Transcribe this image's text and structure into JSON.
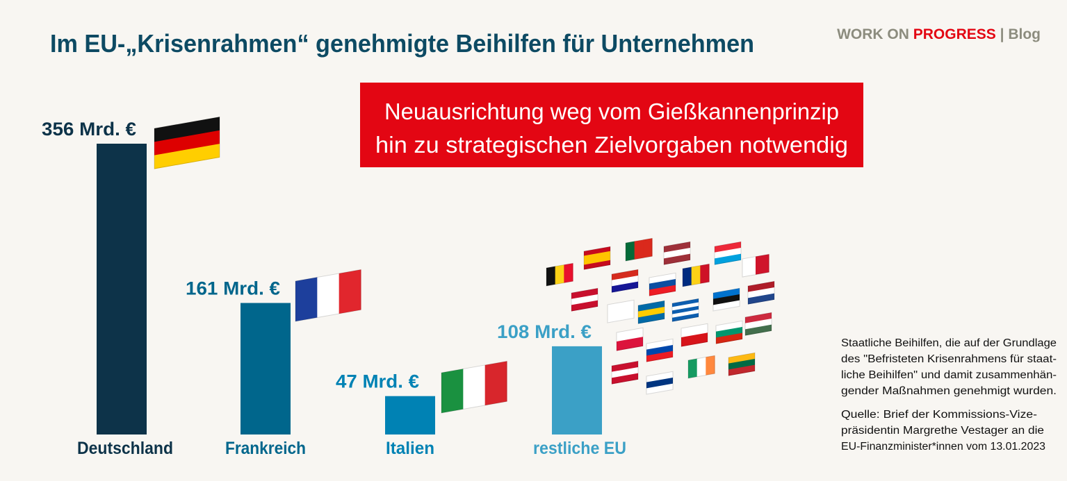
{
  "brand": {
    "prefix": "WORK ON",
    "highlight": "PROGRESS",
    "separator": "|",
    "name": "Blog"
  },
  "callout": {
    "lines": [
      "Neuausrichtung weg vom Gießkannenprinzip",
      "hin zu strategischen Zielvorgaben notwendig"
    ]
  },
  "note": {
    "lines": [
      "Staatliche Beihilfen, die auf der Grundlage",
      "des \"Befristeten Krisenrahmens für staat-",
      "liche Beihilfen\" und damit zusammenhän-",
      "gender Maßnahmen genehmigt wurden."
    ]
  },
  "source": {
    "lines": [
      "Quelle: Brief der Kommissions-Vize-",
      "präsidentin Margrethe Vestager an die",
      "EU-Finanzminister*innen vom 13.01.2023"
    ]
  },
  "chart_data": {
    "type": "bar",
    "title": "Im EU-„Krisenrahmen“ genehmigte Beihilfen für Unternehmen",
    "categories": [
      "Deutschland",
      "Frankreich",
      "Italien",
      "restliche EU"
    ],
    "values": [
      356,
      161,
      47,
      108
    ],
    "value_labels": [
      "356 Mrd. €",
      "161 Mrd. €",
      "47 Mrd. €",
      "108 Mrd. €"
    ],
    "colors": [
      "#0d3349",
      "#00668c",
      "#0082b4",
      "#3ba0c6"
    ]
  }
}
